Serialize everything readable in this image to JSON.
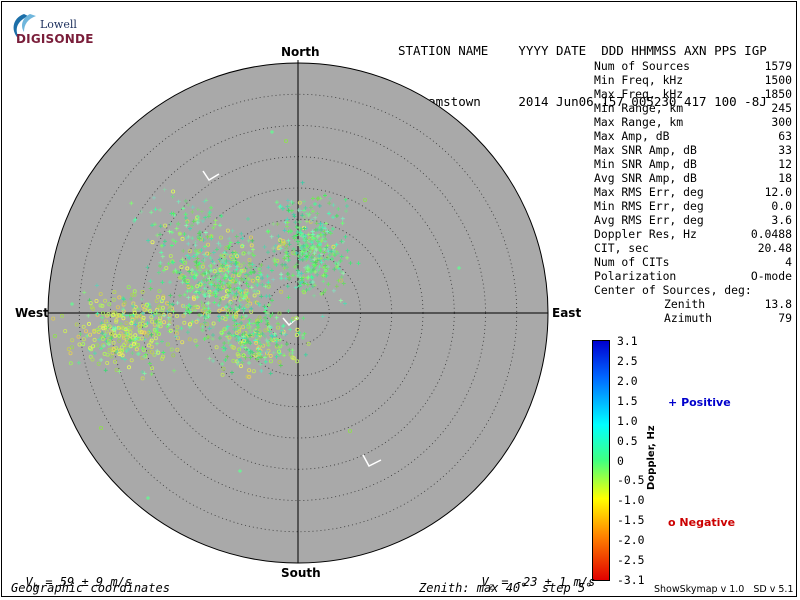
{
  "logo": {
    "top_text": "Lowell",
    "brand_text": "DIGISONDE"
  },
  "header": {
    "row1": "STATION NAME    YYYY DATE  DDD HHMMSS AXN PPS IGP",
    "row2": "Grahamstown     2014 Jun06 157 005230 417 100 -8J"
  },
  "stats": [
    {
      "label": "Num of Sources",
      "value": "1579"
    },
    {
      "label": "Min Freq, kHz",
      "value": "1500"
    },
    {
      "label": "Max Freq, kHz",
      "value": "1850"
    },
    {
      "label": "Min Range, km",
      "value": "245"
    },
    {
      "label": "Max Range, km",
      "value": "300"
    },
    {
      "label": "Max Amp, dB",
      "value": "63"
    },
    {
      "label": "Max SNR Amp, dB",
      "value": "33"
    },
    {
      "label": "Min SNR Amp, dB",
      "value": "12"
    },
    {
      "label": "Avg SNR Amp, dB",
      "value": "18"
    },
    {
      "label": "Max RMS Err, deg",
      "value": "12.0"
    },
    {
      "label": "Min RMS Err, deg",
      "value": "0.0"
    },
    {
      "label": "Avg RMS Err, deg",
      "value": "3.6"
    },
    {
      "label": "Doppler Res, Hz",
      "value": "0.0488"
    },
    {
      "label": "CIT, sec",
      "value": "20.48"
    },
    {
      "label": "Num of CITs",
      "value": "4"
    },
    {
      "label": "Polarization",
      "value": "O-mode"
    }
  ],
  "center_of_sources": {
    "label": "Center of Sources, deg:",
    "zenith_label": "Zenith",
    "zenith_value": "13.8",
    "azimuth_label": "Azimuth",
    "azimuth_value": "79"
  },
  "directions": {
    "north": "North",
    "south": "South",
    "east": "East",
    "west": "West"
  },
  "colorbar": {
    "title": "Doppler, Hz",
    "ticks": [
      "3.1",
      "2.5",
      "2.0",
      "1.5",
      "1.0",
      "0.5",
      "0",
      "-0.5",
      "-1.0",
      "-1.5",
      "-2.0",
      "-2.5",
      "-3.1"
    ]
  },
  "legend": {
    "positive_label": "Positive",
    "positive_color": "#0000cc",
    "negative_label": "Negative",
    "negative_color": "#cc0000"
  },
  "footer": {
    "vh": "V  = 59 ± 9 m/s",
    "vh_sub": "h",
    "vz": "V  = -23 ± 1 m/s",
    "vz_sub": "z",
    "coords": "Geographic coordinates",
    "zenith_info": "Zenith: max 40°  step 5°",
    "version": "ShowSkymap v 1.0   SD v 5.1"
  },
  "chart_data": {
    "type": "scatter",
    "projection": "polar skymap",
    "zenith_max_deg": 40,
    "zenith_step_deg": 5,
    "background_color": "#a9a9a9",
    "point_color": "#40ff80",
    "num_sources": 1579
  }
}
